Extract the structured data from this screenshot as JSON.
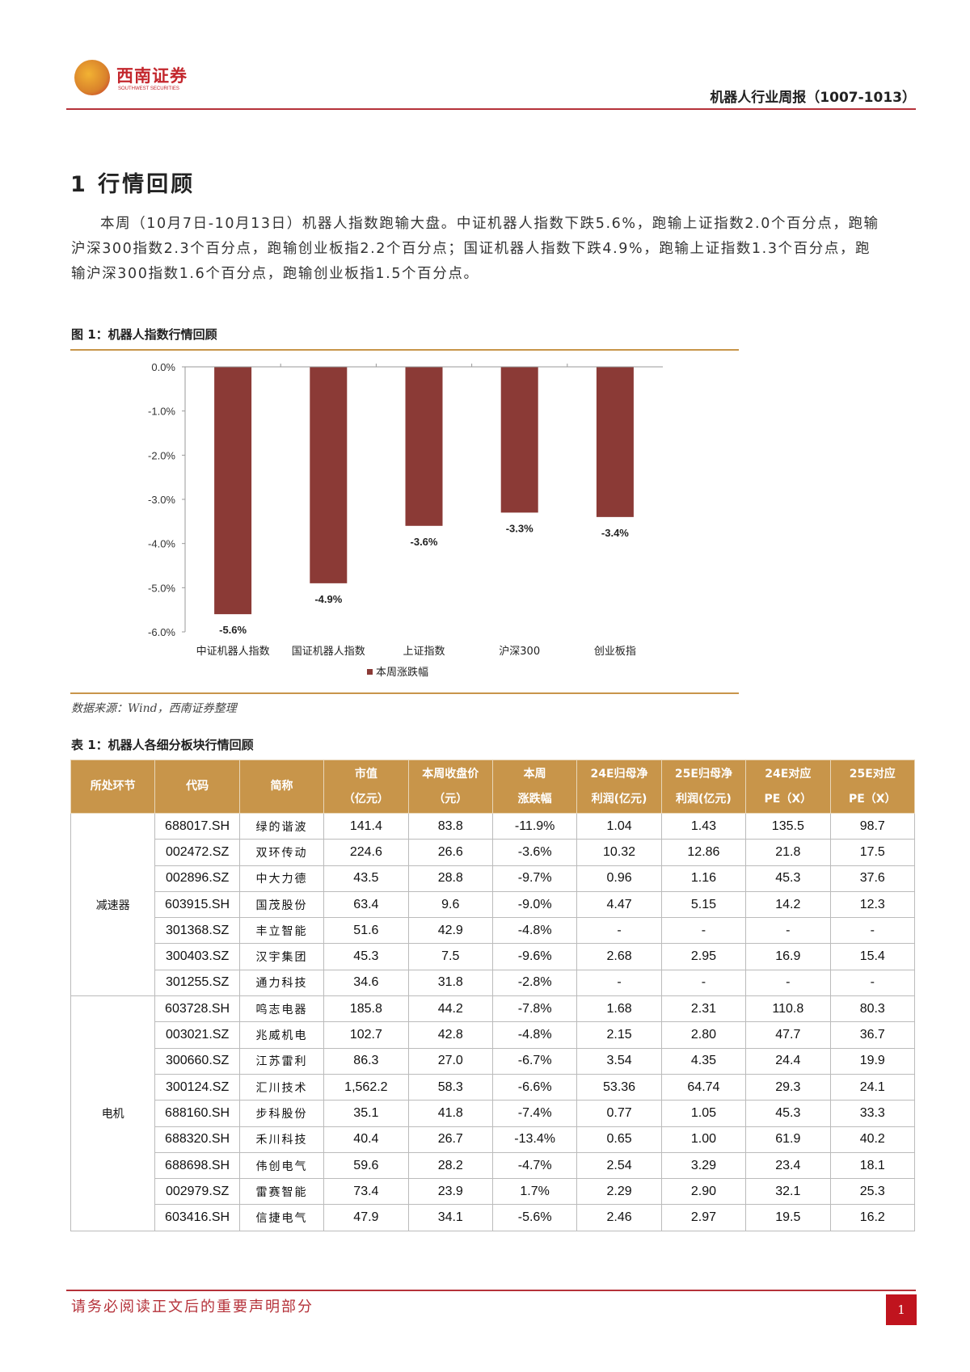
{
  "header": {
    "logo_cn": "西南证券",
    "logo_en": "SOUTHWEST SECURITIES",
    "doc_title": "机器人行业周报（1007-1013）"
  },
  "section": {
    "title": "1  行情回顾",
    "paragraph": "本周（10月7日-10月13日）机器人指数跑输大盘。中证机器人指数下跌5.6%，跑输上证指数2.0个百分点，跑输沪深300指数2.3个百分点，跑输创业板指2.2个百分点；国证机器人指数下跌4.9%，跑输上证指数1.3个百分点，跑输沪深300指数1.6个百分点，跑输创业板指1.5个百分点。"
  },
  "figure": {
    "title": "图 1：机器人指数行情回顾",
    "source": "数据来源：Wind，西南证券整理"
  },
  "chart_data": {
    "type": "bar",
    "categories": [
      "中证机器人指数",
      "国证机器人指数",
      "上证指数",
      "沪深300",
      "创业板指"
    ],
    "values": [
      -5.6,
      -4.9,
      -3.6,
      -3.3,
      -3.4
    ],
    "labels": [
      "-5.6%",
      "-4.9%",
      "-3.6%",
      "-3.3%",
      "-3.4%"
    ],
    "series_name": "本周涨跌幅",
    "ylim": [
      -6.0,
      0.0
    ],
    "yticks": [
      "0.0%",
      "-1.0%",
      "-2.0%",
      "-3.0%",
      "-4.0%",
      "-5.0%",
      "-6.0%"
    ],
    "legend": "bottom",
    "color": "#8b3a36"
  },
  "table": {
    "title": "表 1：机器人各细分板块行情回顾",
    "headers": [
      [
        "所处环节"
      ],
      [
        "代码"
      ],
      [
        "简称"
      ],
      [
        "市值",
        "（亿元）"
      ],
      [
        "本周收盘价",
        "（元）"
      ],
      [
        "本周",
        "涨跌幅"
      ],
      [
        "24E归母净",
        "利润(亿元)"
      ],
      [
        "25E归母净",
        "利润(亿元)"
      ],
      [
        "24E对应",
        "PE（X）"
      ],
      [
        "25E对应",
        "PE（X）"
      ]
    ],
    "groups": [
      {
        "segment": "减速器",
        "rows": [
          [
            "688017.SH",
            "绿的谐波",
            "141.4",
            "83.8",
            "-11.9%",
            "1.04",
            "1.43",
            "135.5",
            "98.7"
          ],
          [
            "002472.SZ",
            "双环传动",
            "224.6",
            "26.6",
            "-3.6%",
            "10.32",
            "12.86",
            "21.8",
            "17.5"
          ],
          [
            "002896.SZ",
            "中大力德",
            "43.5",
            "28.8",
            "-9.7%",
            "0.96",
            "1.16",
            "45.3",
            "37.6"
          ],
          [
            "603915.SH",
            "国茂股份",
            "63.4",
            "9.6",
            "-9.0%",
            "4.47",
            "5.15",
            "14.2",
            "12.3"
          ],
          [
            "301368.SZ",
            "丰立智能",
            "51.6",
            "42.9",
            "-4.8%",
            "-",
            "-",
            "-",
            "-"
          ],
          [
            "300403.SZ",
            "汉宇集团",
            "45.3",
            "7.5",
            "-9.6%",
            "2.68",
            "2.95",
            "16.9",
            "15.4"
          ],
          [
            "301255.SZ",
            "通力科技",
            "34.6",
            "31.8",
            "-2.8%",
            "-",
            "-",
            "-",
            "-"
          ]
        ]
      },
      {
        "segment": "电机",
        "rows": [
          [
            "603728.SH",
            "鸣志电器",
            "185.8",
            "44.2",
            "-7.8%",
            "1.68",
            "2.31",
            "110.8",
            "80.3"
          ],
          [
            "003021.SZ",
            "兆威机电",
            "102.7",
            "42.8",
            "-4.8%",
            "2.15",
            "2.80",
            "47.7",
            "36.7"
          ],
          [
            "300660.SZ",
            "江苏雷利",
            "86.3",
            "27.0",
            "-6.7%",
            "3.54",
            "4.35",
            "24.4",
            "19.9"
          ],
          [
            "300124.SZ",
            "汇川技术",
            "1,562.2",
            "58.3",
            "-6.6%",
            "53.36",
            "64.74",
            "29.3",
            "24.1"
          ],
          [
            "688160.SH",
            "步科股份",
            "35.1",
            "41.8",
            "-7.4%",
            "0.77",
            "1.05",
            "45.3",
            "33.3"
          ],
          [
            "688320.SH",
            "禾川科技",
            "40.4",
            "26.7",
            "-13.4%",
            "0.65",
            "1.00",
            "61.9",
            "40.2"
          ],
          [
            "688698.SH",
            "伟创电气",
            "59.6",
            "28.2",
            "-4.7%",
            "2.54",
            "3.29",
            "23.4",
            "18.1"
          ],
          [
            "002979.SZ",
            "雷赛智能",
            "73.4",
            "23.9",
            "1.7%",
            "2.29",
            "2.90",
            "32.1",
            "25.3"
          ],
          [
            "603416.SH",
            "信捷电气",
            "47.9",
            "34.1",
            "-5.6%",
            "2.46",
            "2.97",
            "19.5",
            "16.2"
          ]
        ]
      }
    ]
  },
  "footer": {
    "note": "请务必阅读正文后的重要声明部分",
    "page": "1"
  }
}
